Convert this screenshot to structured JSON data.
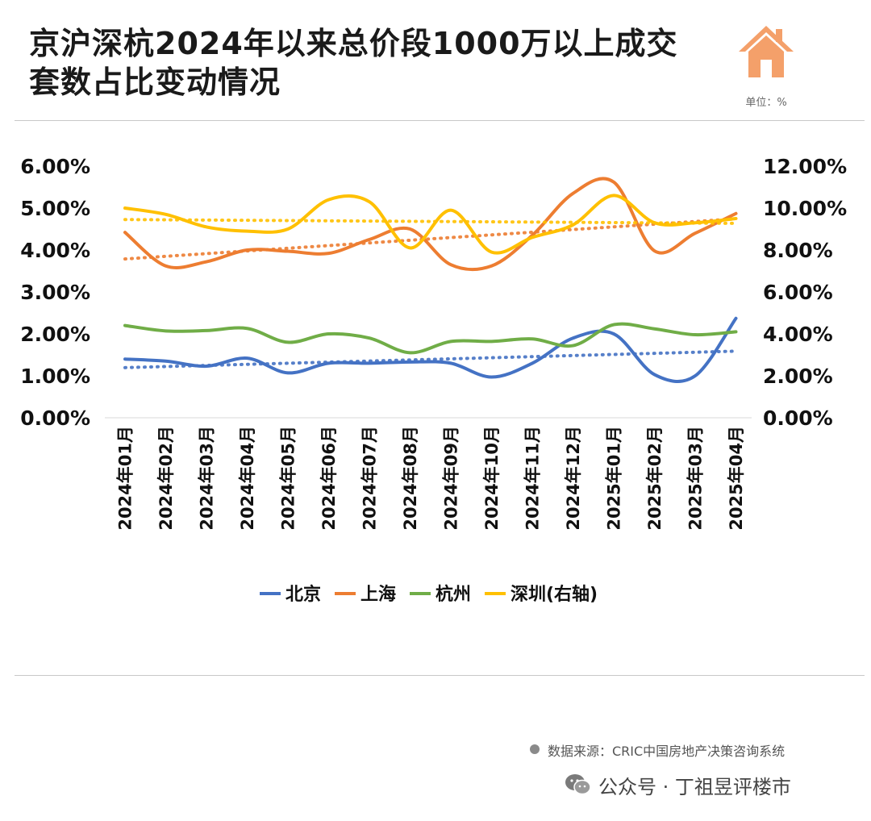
{
  "title": "京沪深杭2024年以来总价段1000万以上成交套数占比变动情况",
  "unit": "单位：%",
  "source": "数据来源：CRIC中国房地产决策咨询系统",
  "footer": "公众号 · 丁祖昱评楼市",
  "icons": [
    "house-icon",
    "wechat-icon"
  ],
  "colors": {
    "beijing": "#4472C4",
    "shanghai": "#ED7D31",
    "hangzhou": "#70AD47",
    "shenzhen": "#FFC000"
  },
  "chart_data": {
    "type": "line",
    "categories": [
      "2024年01月",
      "2024年02月",
      "2024年03月",
      "2024年04月",
      "2024年05月",
      "2024年06月",
      "2024年07月",
      "2024年08月",
      "2024年09月",
      "2024年10月",
      "2024年11月",
      "2024年12月",
      "2025年01月",
      "2025年02月",
      "2025年03月",
      "2025年04月"
    ],
    "y_left": {
      "ticks": [
        "0.00%",
        "1.00%",
        "2.00%",
        "3.00%",
        "4.00%",
        "5.00%",
        "6.00%"
      ],
      "ylim": [
        0,
        6
      ]
    },
    "y_right": {
      "ticks": [
        "0.00%",
        "2.00%",
        "4.00%",
        "6.00%",
        "8.00%",
        "10.00%",
        "12.00%"
      ],
      "ylim": [
        0,
        12
      ]
    },
    "series": [
      {
        "name": "北京",
        "axis": "left",
        "color": "#4472C4",
        "trendline": true,
        "values": [
          1.4,
          1.35,
          1.23,
          1.42,
          1.07,
          1.3,
          1.3,
          1.33,
          1.3,
          0.97,
          1.3,
          1.9,
          2.0,
          1.03,
          1.0,
          2.37
        ]
      },
      {
        "name": "上海",
        "axis": "left",
        "color": "#ED7D31",
        "trendline": true,
        "values": [
          4.42,
          3.62,
          3.72,
          4.0,
          3.97,
          3.92,
          4.25,
          4.5,
          3.65,
          3.62,
          4.35,
          5.35,
          5.62,
          3.98,
          4.4,
          4.87
        ]
      },
      {
        "name": "杭州",
        "axis": "left",
        "color": "#70AD47",
        "trendline": false,
        "values": [
          2.2,
          2.07,
          2.08,
          2.13,
          1.8,
          2.0,
          1.9,
          1.55,
          1.82,
          1.82,
          1.88,
          1.72,
          2.22,
          2.12,
          1.98,
          2.05
        ]
      },
      {
        "name": "深圳(右轴)",
        "axis": "right",
        "color": "#FFC000",
        "trendline": true,
        "values": [
          10.0,
          9.7,
          9.1,
          8.9,
          9.0,
          10.4,
          10.3,
          8.1,
          9.9,
          7.9,
          8.6,
          9.2,
          10.6,
          9.3,
          9.3,
          9.5
        ]
      }
    ],
    "legend": "bottom",
    "grid": false
  }
}
